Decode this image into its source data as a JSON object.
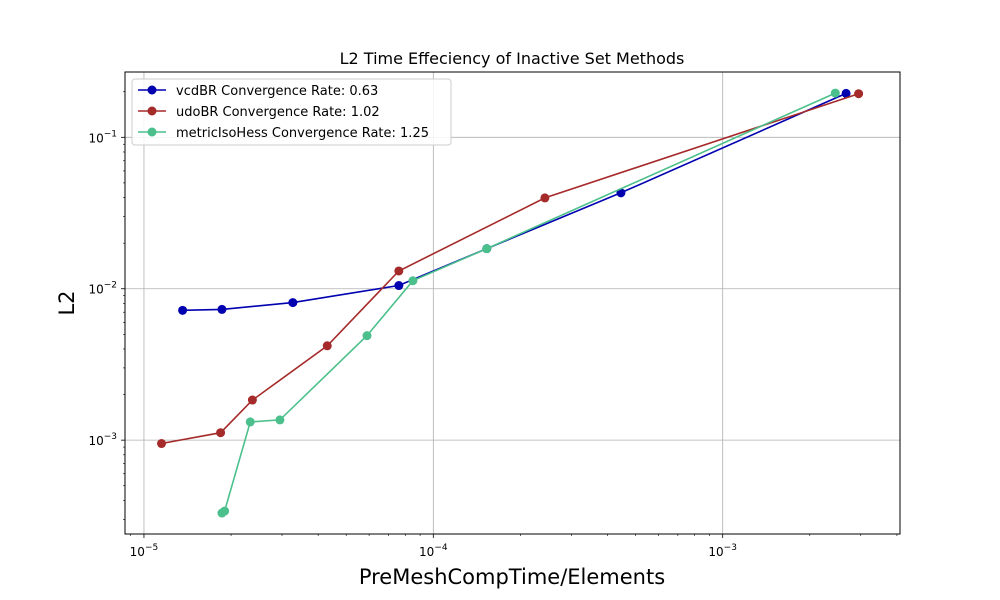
{
  "chart_data": {
    "type": "line",
    "title": "L2 Time Effeciency of Inactive Set Methods",
    "xlabel": "PreMeshCompTime/Elements",
    "ylabel": "L2",
    "xscale": "log",
    "yscale": "log",
    "xlim": [
      8.6e-06,
      0.0041
    ],
    "ylim": [
      0.00024,
      0.27
    ],
    "grid": true,
    "legend_position": "top-left",
    "x_ticks": [
      {
        "value": 1e-05,
        "base": "10",
        "exp": "−5"
      },
      {
        "value": 0.0001,
        "base": "10",
        "exp": "−4"
      },
      {
        "value": 0.001,
        "base": "10",
        "exp": "−3"
      }
    ],
    "y_ticks": [
      {
        "value": 0.001,
        "base": "10",
        "exp": "−3"
      },
      {
        "value": 0.01,
        "base": "10",
        "exp": "−2"
      },
      {
        "value": 0.1,
        "base": "10",
        "exp": "−1"
      }
    ],
    "series": [
      {
        "name": "vcdBR Convergence Rate: 0.63",
        "color": "#0000b0",
        "x": [
          1.36e-05,
          1.86e-05,
          3.27e-05,
          7.6e-05,
          0.000153,
          0.000445,
          0.00267
        ],
        "y": [
          0.0072,
          0.0073,
          0.0081,
          0.0105,
          0.0184,
          0.043,
          0.195
        ]
      },
      {
        "name": "udoBR Convergence Rate: 1.02",
        "color": "#a52a2a",
        "x": [
          1.15e-05,
          1.84e-05,
          2.37e-05,
          4.3e-05,
          7.6e-05,
          0.000243,
          0.00295
        ],
        "y": [
          0.00095,
          0.00112,
          0.00184,
          0.0042,
          0.0131,
          0.0398,
          0.194
        ]
      },
      {
        "name": "metricIsoHess Convergence Rate: 1.25",
        "color": "#4cc08c",
        "x": [
          1.86e-05,
          1.9e-05,
          2.33e-05,
          2.95e-05,
          5.9e-05,
          8.5e-05,
          0.000153,
          0.00245
        ],
        "y": [
          0.00033,
          0.00034,
          0.00132,
          0.00136,
          0.0049,
          0.0113,
          0.0184,
          0.196
        ]
      }
    ]
  }
}
